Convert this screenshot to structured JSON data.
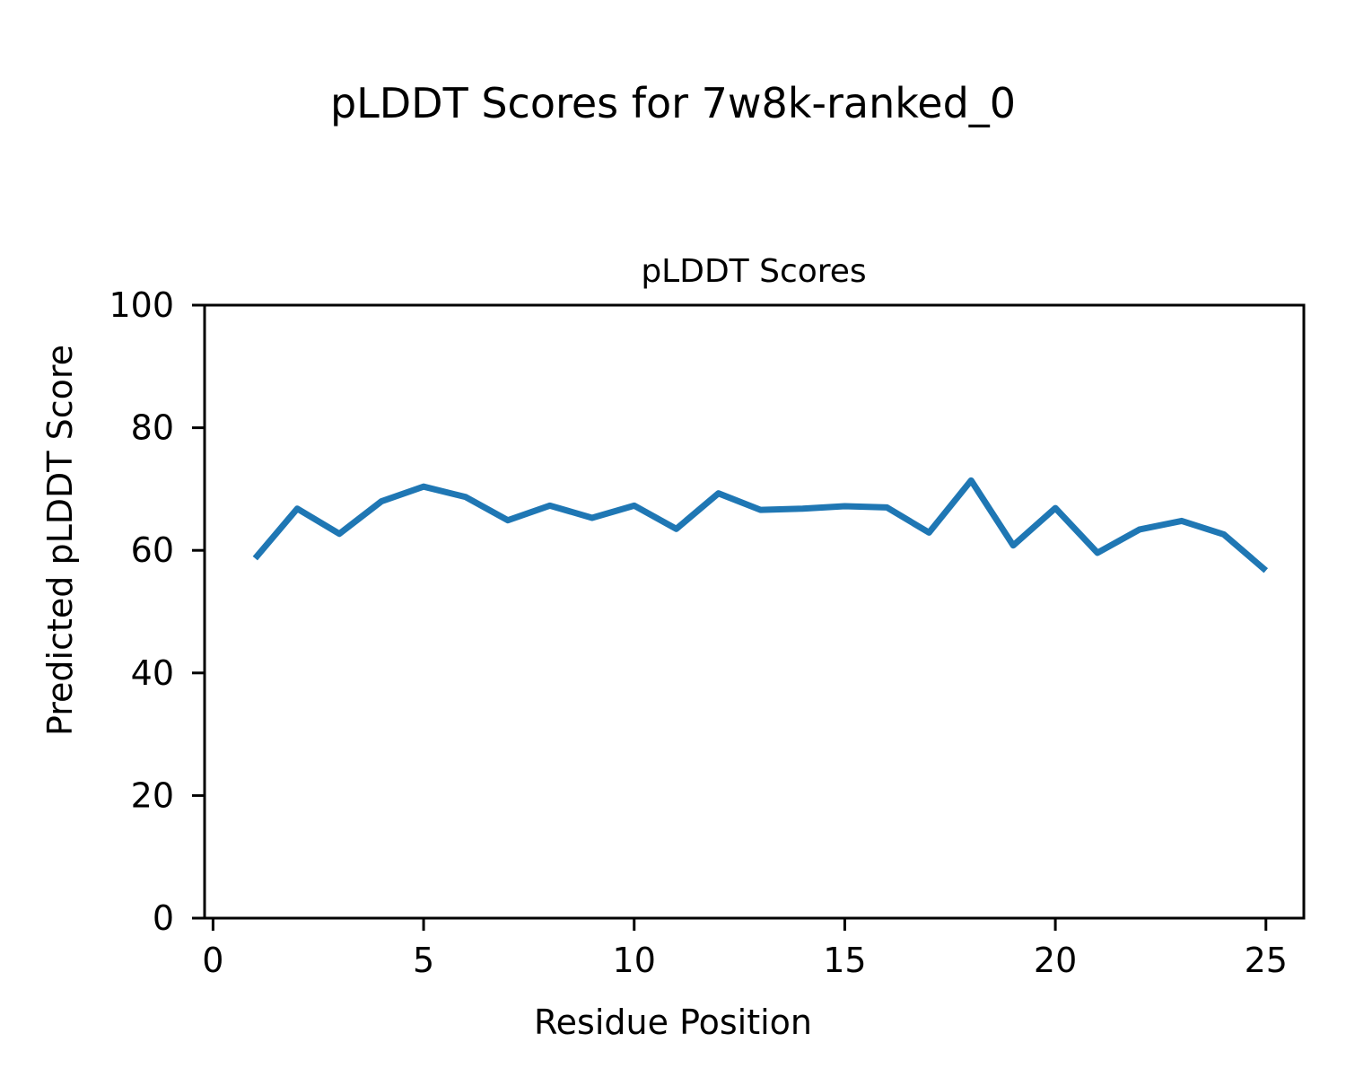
{
  "figure": {
    "title": "pLDDT Scores for 7w8k-ranked_0",
    "background": "#ffffff",
    "text_color": "#000000"
  },
  "chart_data": {
    "type": "line",
    "title": "pLDDT Scores",
    "xlabel": "Residue Position",
    "ylabel": "Predicted pLDDT Score",
    "x": [
      1,
      2,
      3,
      4,
      5,
      6,
      7,
      8,
      9,
      10,
      11,
      12,
      13,
      14,
      15,
      16,
      17,
      18,
      19,
      20,
      21,
      22,
      23,
      24,
      25
    ],
    "y": [
      58.7,
      66.8,
      62.7,
      68.0,
      70.4,
      68.7,
      64.9,
      67.3,
      65.3,
      67.3,
      63.5,
      69.3,
      66.6,
      66.8,
      67.2,
      67.0,
      62.9,
      71.4,
      60.8,
      66.9,
      59.6,
      63.4,
      64.8,
      62.6,
      56.7
    ],
    "xticks": [
      0,
      5,
      10,
      15,
      20,
      25
    ],
    "yticks": [
      0,
      20,
      40,
      60,
      80,
      100
    ],
    "xlim": [
      -0.2,
      25.9
    ],
    "ylim": [
      0,
      100
    ],
    "line_color": "#1f77b4",
    "line_width": 7,
    "spine_color": "#000000",
    "grid": false,
    "legend": false
  }
}
